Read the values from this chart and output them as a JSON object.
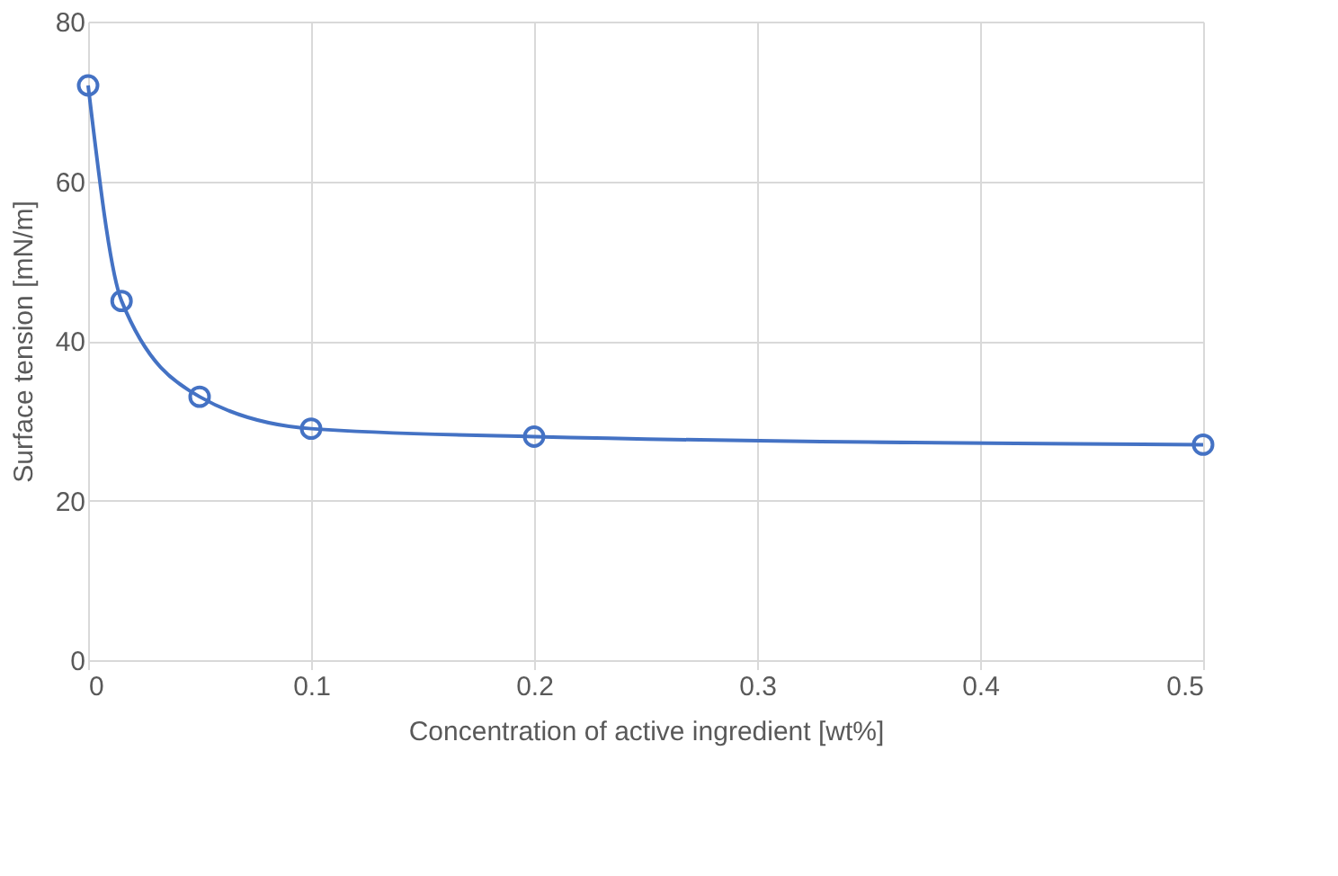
{
  "chart_data": {
    "type": "line",
    "xlabel": "Concentration of active ingredient [wt%]",
    "ylabel": "Surface tension [mN/m]",
    "x": [
      0,
      0.015,
      0.05,
      0.1,
      0.2,
      0.5
    ],
    "series": [
      {
        "color": "#4472c4",
        "values": [
          72,
          45,
          33,
          29,
          28,
          27
        ]
      }
    ],
    "xlim": [
      0,
      0.5
    ],
    "xticks": [
      0,
      0.1,
      0.2,
      0.3,
      0.4,
      0.5
    ],
    "ylim": [
      0,
      80
    ],
    "yticks": [
      0,
      20,
      40,
      60,
      80
    ],
    "grid": true,
    "marker": "circle",
    "line_style": "solid"
  }
}
